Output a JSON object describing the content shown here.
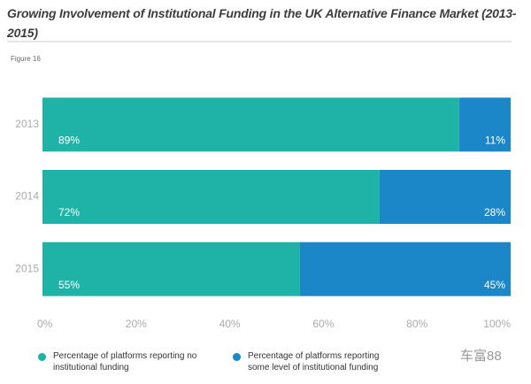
{
  "chart_data": {
    "type": "stacked-barh",
    "title": "Growing Involvement of Institutional Funding in the UK Alternative Finance Market (2013-2015)",
    "figure_label": "Figure 16",
    "categories": [
      "2013",
      "2014",
      "2015"
    ],
    "series": [
      {
        "name": "Percentage of platforms reporting no institutional funding",
        "color": "#1fb3a7",
        "values": [
          89,
          72,
          55
        ],
        "value_labels": [
          "89%",
          "72%",
          "55%"
        ]
      },
      {
        "name": "Percentage of platforms reporting some level of institutional funding",
        "color": "#1b87c9",
        "values": [
          11,
          28,
          45
        ],
        "value_labels": [
          "11%",
          "28%",
          "45%"
        ]
      }
    ],
    "xlim": [
      0,
      100
    ],
    "xticks": [
      {
        "value": 0,
        "label": "0%"
      },
      {
        "value": 20,
        "label": "20%"
      },
      {
        "value": 40,
        "label": "40%"
      },
      {
        "value": 60,
        "label": "60%"
      },
      {
        "value": 80,
        "label": "80%"
      },
      {
        "value": 100,
        "label": "100%"
      }
    ],
    "watermark": "车富88"
  }
}
